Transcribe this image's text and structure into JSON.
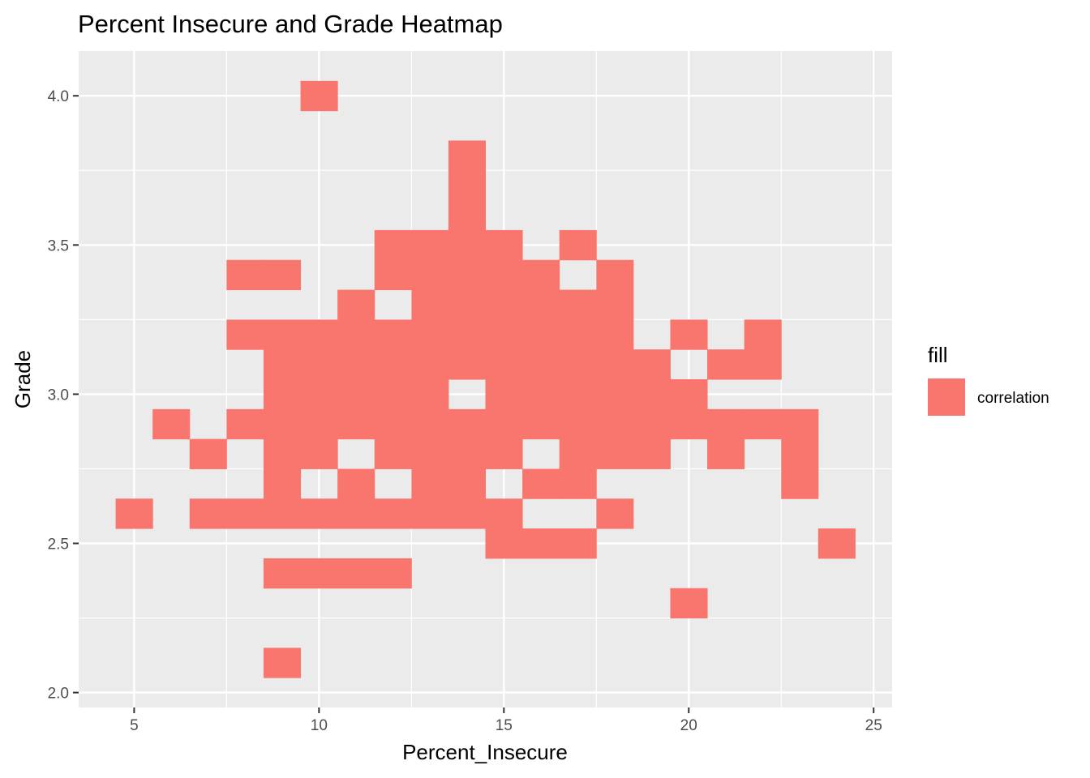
{
  "chart_data": {
    "type": "heatmap",
    "title": "Percent Insecure and Grade Heatmap",
    "xlabel": "Percent_Insecure",
    "ylabel": "Grade",
    "xlim": [
      3.5,
      25.5
    ],
    "ylim": [
      1.95,
      4.15
    ],
    "x_ticks": [
      5,
      10,
      15,
      20,
      25
    ],
    "x_tick_labels": [
      "5",
      "10",
      "15",
      "20",
      "25"
    ],
    "y_ticks": [
      2.0,
      2.5,
      3.0,
      3.5,
      4.0
    ],
    "y_tick_labels": [
      "2.0",
      "2.5",
      "3.0",
      "3.5",
      "4.0"
    ],
    "grid": true,
    "tile_width": 1,
    "tile_height": 0.1,
    "fill_color": "#F8766D",
    "panel_background": "#EBEBEB",
    "legend": {
      "title": "fill",
      "entries": [
        "correlation"
      ],
      "position": "right"
    },
    "tiles": [
      [
        10,
        4.0
      ],
      [
        14,
        3.8
      ],
      [
        14,
        3.7
      ],
      [
        14,
        3.6
      ],
      [
        12,
        3.5
      ],
      [
        13,
        3.5
      ],
      [
        14,
        3.5
      ],
      [
        15,
        3.5
      ],
      [
        17,
        3.5
      ],
      [
        8,
        3.4
      ],
      [
        9,
        3.4
      ],
      [
        12,
        3.4
      ],
      [
        13,
        3.4
      ],
      [
        14,
        3.4
      ],
      [
        15,
        3.4
      ],
      [
        16,
        3.4
      ],
      [
        18,
        3.4
      ],
      [
        11,
        3.3
      ],
      [
        13,
        3.3
      ],
      [
        14,
        3.3
      ],
      [
        15,
        3.3
      ],
      [
        16,
        3.3
      ],
      [
        17,
        3.3
      ],
      [
        18,
        3.3
      ],
      [
        8,
        3.2
      ],
      [
        9,
        3.2
      ],
      [
        10,
        3.2
      ],
      [
        11,
        3.2
      ],
      [
        12,
        3.2
      ],
      [
        13,
        3.2
      ],
      [
        14,
        3.2
      ],
      [
        15,
        3.2
      ],
      [
        16,
        3.2
      ],
      [
        17,
        3.2
      ],
      [
        18,
        3.2
      ],
      [
        20,
        3.2
      ],
      [
        22,
        3.2
      ],
      [
        9,
        3.1
      ],
      [
        10,
        3.1
      ],
      [
        11,
        3.1
      ],
      [
        12,
        3.1
      ],
      [
        13,
        3.1
      ],
      [
        14,
        3.1
      ],
      [
        15,
        3.1
      ],
      [
        16,
        3.1
      ],
      [
        17,
        3.1
      ],
      [
        18,
        3.1
      ],
      [
        19,
        3.1
      ],
      [
        21,
        3.1
      ],
      [
        22,
        3.1
      ],
      [
        9,
        3.0
      ],
      [
        10,
        3.0
      ],
      [
        11,
        3.0
      ],
      [
        12,
        3.0
      ],
      [
        13,
        3.0
      ],
      [
        15,
        3.0
      ],
      [
        16,
        3.0
      ],
      [
        17,
        3.0
      ],
      [
        18,
        3.0
      ],
      [
        19,
        3.0
      ],
      [
        20,
        3.0
      ],
      [
        6,
        2.9
      ],
      [
        8,
        2.9
      ],
      [
        9,
        2.9
      ],
      [
        10,
        2.9
      ],
      [
        11,
        2.9
      ],
      [
        12,
        2.9
      ],
      [
        13,
        2.9
      ],
      [
        14,
        2.9
      ],
      [
        15,
        2.9
      ],
      [
        16,
        2.9
      ],
      [
        17,
        2.9
      ],
      [
        18,
        2.9
      ],
      [
        19,
        2.9
      ],
      [
        20,
        2.9
      ],
      [
        21,
        2.9
      ],
      [
        22,
        2.9
      ],
      [
        23,
        2.9
      ],
      [
        7,
        2.8
      ],
      [
        9,
        2.8
      ],
      [
        10,
        2.8
      ],
      [
        12,
        2.8
      ],
      [
        13,
        2.8
      ],
      [
        14,
        2.8
      ],
      [
        15,
        2.8
      ],
      [
        17,
        2.8
      ],
      [
        18,
        2.8
      ],
      [
        19,
        2.8
      ],
      [
        21,
        2.8
      ],
      [
        23,
        2.8
      ],
      [
        9,
        2.7
      ],
      [
        11,
        2.7
      ],
      [
        13,
        2.7
      ],
      [
        14,
        2.7
      ],
      [
        16,
        2.7
      ],
      [
        17,
        2.7
      ],
      [
        23,
        2.7
      ],
      [
        5,
        2.6
      ],
      [
        7,
        2.6
      ],
      [
        8,
        2.6
      ],
      [
        9,
        2.6
      ],
      [
        10,
        2.6
      ],
      [
        11,
        2.6
      ],
      [
        12,
        2.6
      ],
      [
        13,
        2.6
      ],
      [
        14,
        2.6
      ],
      [
        15,
        2.6
      ],
      [
        18,
        2.6
      ],
      [
        15,
        2.5
      ],
      [
        16,
        2.5
      ],
      [
        17,
        2.5
      ],
      [
        24,
        2.5
      ],
      [
        9,
        2.4
      ],
      [
        10,
        2.4
      ],
      [
        11,
        2.4
      ],
      [
        12,
        2.4
      ],
      [
        20,
        2.3
      ],
      [
        9,
        2.1
      ]
    ]
  }
}
